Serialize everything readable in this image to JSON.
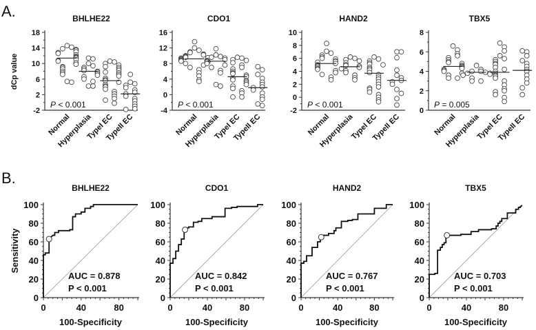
{
  "panel_labels": {
    "a": "A.",
    "b": "B."
  },
  "chart_data": [
    {
      "type": "scatter",
      "panel": "A",
      "title": "BHLHE22",
      "ylabel": "dCp value",
      "ylim": [
        -2,
        18
      ],
      "yticks": [
        -2,
        2,
        6,
        10,
        14,
        18
      ],
      "categories": [
        "Normal",
        "Hyperplasia",
        "TypeI EC",
        "TypeII EC"
      ],
      "p_prefix": "P",
      "p_text": " < 0.001",
      "medians": [
        11.4,
        8.0,
        5.6,
        2.2
      ],
      "groups": [
        [
          14.6,
          14.2,
          13.8,
          13.4,
          13.0,
          12.6,
          12.2,
          11.8,
          11.4,
          11.0,
          10.6,
          10.2,
          9.8,
          9.2,
          8.6,
          8.0,
          7.6,
          7.2,
          5.4,
          5.2,
          13.6,
          12.8,
          11.6,
          10.8,
          9.0
        ],
        [
          11.4,
          11.2,
          10.0,
          9.4,
          9.0,
          8.6,
          8.2,
          8.0,
          7.8,
          7.4,
          7.0,
          6.6,
          6.0,
          5.4,
          4.2,
          4.2
        ],
        [
          10.6,
          10.4,
          10.0,
          9.6,
          9.0,
          8.6,
          8.2,
          7.8,
          7.2,
          6.8,
          6.2,
          5.8,
          5.6,
          5.2,
          4.6,
          4.0,
          3.4,
          2.8,
          2.2,
          1.6,
          1.0,
          0.6,
          -0.2,
          9.2,
          7.6,
          4.2
        ],
        [
          7.2,
          5.2,
          4.8,
          4.4,
          3.8,
          3.2,
          2.6,
          2.2,
          1.6,
          1.0,
          0.4,
          -0.4,
          -1.0,
          -1.6,
          -1.8
        ]
      ]
    },
    {
      "type": "scatter",
      "panel": "A",
      "title": "CDO1",
      "ylabel": "",
      "ylim": [
        -4,
        16
      ],
      "yticks": [
        -4,
        0,
        4,
        8,
        12,
        16
      ],
      "categories": [
        "Normal",
        "Hyperplasia",
        "TypeI EC",
        "TypeII EC"
      ],
      "p_prefix": "P",
      "p_text": " < 0.001",
      "medians": [
        9.2,
        8.6,
        4.6,
        1.8
      ],
      "groups": [
        [
          13.6,
          12.0,
          11.4,
          10.8,
          10.4,
          10.0,
          9.8,
          9.6,
          9.4,
          9.2,
          9.0,
          8.8,
          8.4,
          8.0,
          7.6,
          7.0,
          6.4,
          5.6,
          4.8,
          3.8,
          3.4,
          11.0,
          10.2,
          9.5,
          8.6
        ],
        [
          11.8,
          10.2,
          9.8,
          9.6,
          9.4,
          9.0,
          8.8,
          8.6,
          8.4,
          8.0,
          7.6,
          7.0,
          6.2,
          5.6,
          2.6,
          2.2
        ],
        [
          9.6,
          9.4,
          8.8,
          8.2,
          7.6,
          7.0,
          6.6,
          6.0,
          5.6,
          5.0,
          4.6,
          4.2,
          3.8,
          3.4,
          3.0,
          2.6,
          2.2,
          1.6,
          1.0,
          0.4,
          -0.6,
          -0.6,
          9.0,
          5.4,
          3.6
        ],
        [
          7.2,
          6.4,
          5.2,
          4.2,
          3.2,
          2.6,
          2.0,
          1.8,
          1.2,
          0.4,
          -0.6,
          -1.2,
          -2.4,
          -2.8
        ]
      ]
    },
    {
      "type": "scatter",
      "panel": "A",
      "title": "HAND2",
      "ylabel": "",
      "ylim": [
        -2,
        10
      ],
      "yticks": [
        -2,
        0,
        2,
        4,
        6,
        8,
        10
      ],
      "categories": [
        "Normal",
        "Hyperplasia",
        "TypeI EC",
        "TypeII EC"
      ],
      "p_prefix": "P",
      "p_text": " < 0.001",
      "medians": [
        5.2,
        4.7,
        3.7,
        2.6
      ],
      "groups": [
        [
          8.3,
          7.1,
          6.8,
          6.5,
          6.2,
          5.9,
          5.6,
          5.4,
          5.2,
          5.0,
          4.8,
          4.6,
          4.4,
          4.1,
          3.8,
          3.5,
          3.1,
          2.7,
          6.0,
          5.5,
          4.9,
          4.3
        ],
        [
          6.2,
          6.0,
          5.6,
          5.3,
          5.0,
          4.8,
          4.6,
          4.4,
          4.1,
          3.8,
          3.4,
          3.0,
          2.7,
          5.8,
          4.9
        ],
        [
          6.2,
          5.9,
          5.6,
          5.3,
          5.0,
          4.6,
          4.2,
          3.8,
          3.5,
          3.1,
          2.8,
          2.4,
          2.0,
          1.6,
          1.2,
          0.8,
          0.4,
          0.0,
          -0.4,
          -0.7,
          5.1,
          4.4,
          1.4
        ],
        [
          7.0,
          7.0,
          6.1,
          4.2,
          3.4,
          3.0,
          2.6,
          2.4,
          2.0,
          1.2,
          0.6,
          -0.2,
          -1.2
        ]
      ]
    },
    {
      "type": "scatter",
      "panel": "A",
      "title": "TBX5",
      "ylabel": "",
      "ylim": [
        0,
        8
      ],
      "yticks": [
        0,
        2,
        4,
        6,
        8
      ],
      "categories": [
        "Normal",
        "Hyperplasia",
        "TypeI EC",
        "TypeII EC"
      ],
      "p_prefix": "P",
      "p_text": " = 0.005",
      "medians": [
        4.5,
        3.9,
        3.9,
        4.1
      ],
      "groups": [
        [
          6.6,
          6.2,
          5.8,
          5.6,
          5.2,
          5.0,
          4.8,
          4.6,
          4.5,
          4.4,
          4.3,
          4.2,
          4.0,
          3.8,
          3.6,
          3.3,
          3.3,
          4.9,
          4.1,
          5.4
        ],
        [
          4.6,
          4.2,
          4.0,
          4.0,
          3.9,
          3.8,
          3.8,
          3.7,
          3.6,
          3.3,
          3.0,
          3.0
        ],
        [
          6.9,
          6.5,
          6.1,
          5.6,
          5.3,
          5.0,
          4.7,
          4.4,
          4.2,
          4.0,
          3.8,
          3.6,
          3.3,
          3.0,
          2.6,
          2.2,
          1.9,
          1.6,
          1.3,
          0.9,
          5.2,
          4.8,
          3.5,
          2.0
        ],
        [
          6.1,
          6.0,
          5.6,
          5.1,
          4.8,
          4.5,
          4.2,
          4.0,
          3.6,
          3.2,
          2.8,
          2.3,
          1.6
        ]
      ]
    },
    {
      "type": "line",
      "panel": "B",
      "title": "BHLHE22",
      "xlabel": "100-Specificity",
      "ylabel": "Sensitivity",
      "xlim": [
        0,
        100
      ],
      "ylim": [
        0,
        100
      ],
      "xticks": [
        0,
        40,
        80
      ],
      "yticks": [
        0,
        20,
        40,
        60,
        80,
        100
      ],
      "auc_text": "AUC = 0.878",
      "p_text": "P < 0.001",
      "cutoff": [
        6,
        63
      ],
      "roc": [
        [
          0,
          0
        ],
        [
          0,
          46
        ],
        [
          2,
          46
        ],
        [
          2,
          48
        ],
        [
          6,
          48
        ],
        [
          6,
          63
        ],
        [
          8,
          63
        ],
        [
          8,
          65
        ],
        [
          10,
          67
        ],
        [
          12,
          67
        ],
        [
          12,
          70
        ],
        [
          16,
          70
        ],
        [
          16,
          72
        ],
        [
          28,
          72
        ],
        [
          28,
          73
        ],
        [
          31,
          73
        ],
        [
          31,
          87
        ],
        [
          34,
          87
        ],
        [
          34,
          90
        ],
        [
          40,
          90
        ],
        [
          40,
          92
        ],
        [
          44,
          92
        ],
        [
          44,
          96
        ],
        [
          50,
          96
        ],
        [
          50,
          98
        ],
        [
          53,
          98
        ],
        [
          53,
          100
        ],
        [
          100,
          100
        ]
      ]
    },
    {
      "type": "line",
      "panel": "B",
      "title": "CDO1",
      "xlabel": "100-Specificity",
      "ylabel": "",
      "xlim": [
        0,
        100
      ],
      "ylim": [
        0,
        100
      ],
      "xticks": [
        0,
        40,
        80
      ],
      "yticks": [
        0,
        20,
        40,
        60,
        80,
        100
      ],
      "auc_text": "AUC = 0.842",
      "p_text": "P < 0.001",
      "cutoff": [
        16,
        73
      ],
      "roc": [
        [
          0,
          0
        ],
        [
          0,
          37
        ],
        [
          3,
          37
        ],
        [
          3,
          42
        ],
        [
          6,
          42
        ],
        [
          6,
          50
        ],
        [
          9,
          50
        ],
        [
          9,
          57
        ],
        [
          12,
          57
        ],
        [
          12,
          63
        ],
        [
          15,
          63
        ],
        [
          15,
          70
        ],
        [
          17,
          73
        ],
        [
          17,
          75
        ],
        [
          20,
          75
        ],
        [
          20,
          76
        ],
        [
          25,
          76
        ],
        [
          25,
          81
        ],
        [
          30,
          81
        ],
        [
          30,
          82
        ],
        [
          34,
          82
        ],
        [
          34,
          85
        ],
        [
          45,
          85
        ],
        [
          45,
          87
        ],
        [
          59,
          87
        ],
        [
          59,
          96
        ],
        [
          66,
          96
        ],
        [
          66,
          97
        ],
        [
          72,
          97
        ],
        [
          72,
          98
        ],
        [
          94,
          98
        ],
        [
          94,
          100
        ],
        [
          100,
          100
        ]
      ]
    },
    {
      "type": "line",
      "panel": "B",
      "title": "HAND2",
      "xlabel": "100-Specificity",
      "ylabel": "",
      "xlim": [
        0,
        100
      ],
      "ylim": [
        0,
        100
      ],
      "xticks": [
        0,
        40,
        80
      ],
      "yticks": [
        0,
        20,
        40,
        60,
        80,
        100
      ],
      "auc_text": "AUC = 0.767",
      "p_text": "P < 0.001",
      "cutoff": [
        22,
        65
      ],
      "roc": [
        [
          0,
          0
        ],
        [
          0,
          37
        ],
        [
          3,
          37
        ],
        [
          3,
          39
        ],
        [
          6,
          39
        ],
        [
          6,
          45
        ],
        [
          12,
          45
        ],
        [
          12,
          54
        ],
        [
          18,
          54
        ],
        [
          18,
          60
        ],
        [
          21,
          60
        ],
        [
          21,
          65
        ],
        [
          24,
          65
        ],
        [
          24,
          67
        ],
        [
          30,
          67
        ],
        [
          30,
          69
        ],
        [
          36,
          69
        ],
        [
          36,
          72
        ],
        [
          38,
          72
        ],
        [
          38,
          75
        ],
        [
          44,
          75
        ],
        [
          44,
          82
        ],
        [
          51,
          82
        ],
        [
          51,
          83
        ],
        [
          56,
          83
        ],
        [
          56,
          84
        ],
        [
          62,
          84
        ],
        [
          62,
          90
        ],
        [
          80,
          90
        ],
        [
          80,
          96
        ],
        [
          93,
          96
        ],
        [
          93,
          100
        ],
        [
          100,
          100
        ]
      ]
    },
    {
      "type": "line",
      "panel": "B",
      "title": "TBX5",
      "xlabel": "100-Specificity",
      "ylabel": "",
      "xlim": [
        0,
        100
      ],
      "ylim": [
        0,
        100
      ],
      "xticks": [
        0,
        40,
        80
      ],
      "yticks": [
        0,
        20,
        40,
        60,
        80,
        100
      ],
      "auc_text": "AUC = 0.703",
      "p_text": "P < 0.001",
      "cutoff": [
        19,
        67
      ],
      "roc": [
        [
          0,
          0
        ],
        [
          0,
          25
        ],
        [
          6,
          25
        ],
        [
          6,
          26
        ],
        [
          9,
          26
        ],
        [
          9,
          51
        ],
        [
          12,
          51
        ],
        [
          12,
          54
        ],
        [
          14,
          54
        ],
        [
          14,
          57
        ],
        [
          16,
          57
        ],
        [
          16,
          59
        ],
        [
          18,
          59
        ],
        [
          18,
          67
        ],
        [
          34,
          67
        ],
        [
          34,
          68
        ],
        [
          45,
          68
        ],
        [
          45,
          71
        ],
        [
          53,
          71
        ],
        [
          53,
          73
        ],
        [
          67,
          73
        ],
        [
          67,
          74
        ],
        [
          72,
          74
        ],
        [
          72,
          77
        ],
        [
          74,
          77
        ],
        [
          74,
          80
        ],
        [
          76,
          80
        ],
        [
          76,
          82
        ],
        [
          78,
          82
        ],
        [
          78,
          85
        ],
        [
          84,
          85
        ],
        [
          84,
          91
        ],
        [
          93,
          91
        ],
        [
          93,
          95
        ],
        [
          96,
          95
        ],
        [
          96,
          97
        ],
        [
          98,
          97
        ],
        [
          98,
          98
        ],
        [
          100,
          99
        ]
      ]
    }
  ]
}
